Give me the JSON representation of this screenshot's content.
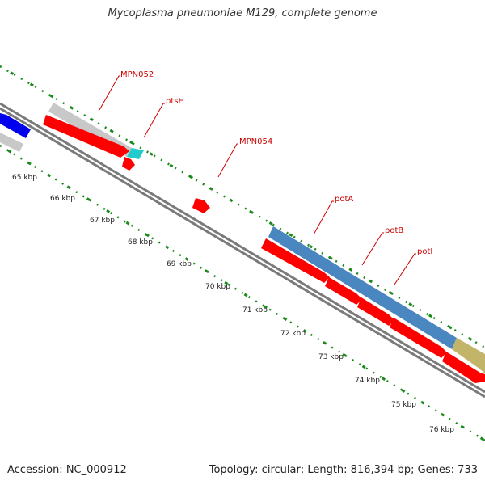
{
  "title": "Mycoplasma pneumoniae M129, complete genome",
  "footer": {
    "accession": "Accession: NC_000912",
    "summary": "Topology: circular; Length: 816,394 bp; Genes: 733"
  },
  "colors": {
    "backbone": "#8c8c8c",
    "tick": "#1a8a1a",
    "cds_red": "#ff0000",
    "gene_gray": "#c8c8c8",
    "gene_blue": "#0000ee",
    "gene_cyan": "#22cccc",
    "gene_steel": "#4a86c0",
    "gene_olive": "#c2b56a",
    "label_red": "#cc0000"
  },
  "kbp_labels": [
    "65 kbp",
    "66 kbp",
    "67 kbp",
    "68 kbp",
    "69 kbp",
    "70 kbp",
    "71 kbp",
    "72 kbp",
    "73 kbp",
    "74 kbp",
    "75 kbp",
    "76 kbp"
  ],
  "gene_labels": [
    "MPN052",
    "ptsH",
    "MPN054",
    "potA",
    "potB",
    "potI"
  ]
}
